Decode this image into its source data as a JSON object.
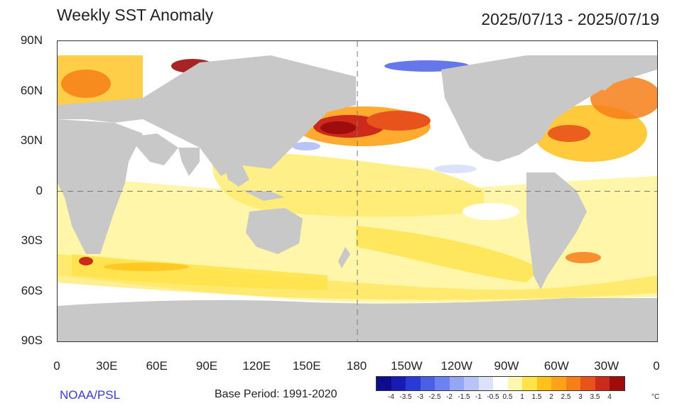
{
  "header": {
    "title": "Weekly SST Anomaly",
    "date_range": "2025/07/13 - 2025/07/19"
  },
  "axes": {
    "lat_labels": [
      "90N",
      "60N",
      "30N",
      "0",
      "30S",
      "60S",
      "90S"
    ],
    "lon_labels": [
      "0",
      "30E",
      "60E",
      "90E",
      "120E",
      "150E",
      "180",
      "150W",
      "120W",
      "90W",
      "60W",
      "30W",
      "0"
    ]
  },
  "legend": {
    "ticks": [
      "-4",
      "-3.5",
      "-3",
      "-2.5",
      "-2",
      "-1.5",
      "-1",
      "-0.5",
      "0.5",
      "1",
      "1.5",
      "2",
      "2.5",
      "3",
      "3.5",
      "4"
    ],
    "unit": "°C",
    "colors": [
      "#0c0c8c",
      "#1a1ab4",
      "#2a3ad6",
      "#4b5fe6",
      "#6d82f0",
      "#95a6f5",
      "#b9c3f7",
      "#dde2fb",
      "#ffffff",
      "#fff7b0",
      "#ffe34a",
      "#ffc21a",
      "#ffa21a",
      "#f77f17",
      "#e8521b",
      "#cc2a1a",
      "#9e0c0c"
    ]
  },
  "footer": {
    "credit": "NOAA/PSL",
    "base_period": "Base Period: 1991-2020"
  },
  "style": {
    "land_color": "#c8c8c8",
    "ocean_neutral": "#ffffff"
  }
}
